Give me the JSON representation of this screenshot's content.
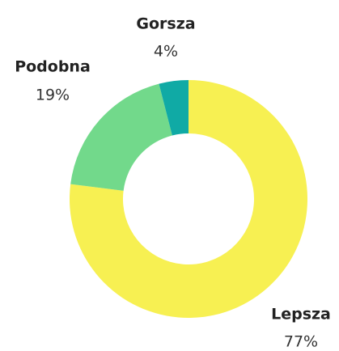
{
  "chart_data": {
    "type": "donut",
    "categories": [
      "Lepsza",
      "Podobna",
      "Gorsza"
    ],
    "values": [
      77,
      19,
      4
    ],
    "value_labels": [
      "77%",
      "19%",
      "4%"
    ],
    "colors": [
      "#f7f052",
      "#72d98b",
      "#10aaa5"
    ]
  }
}
